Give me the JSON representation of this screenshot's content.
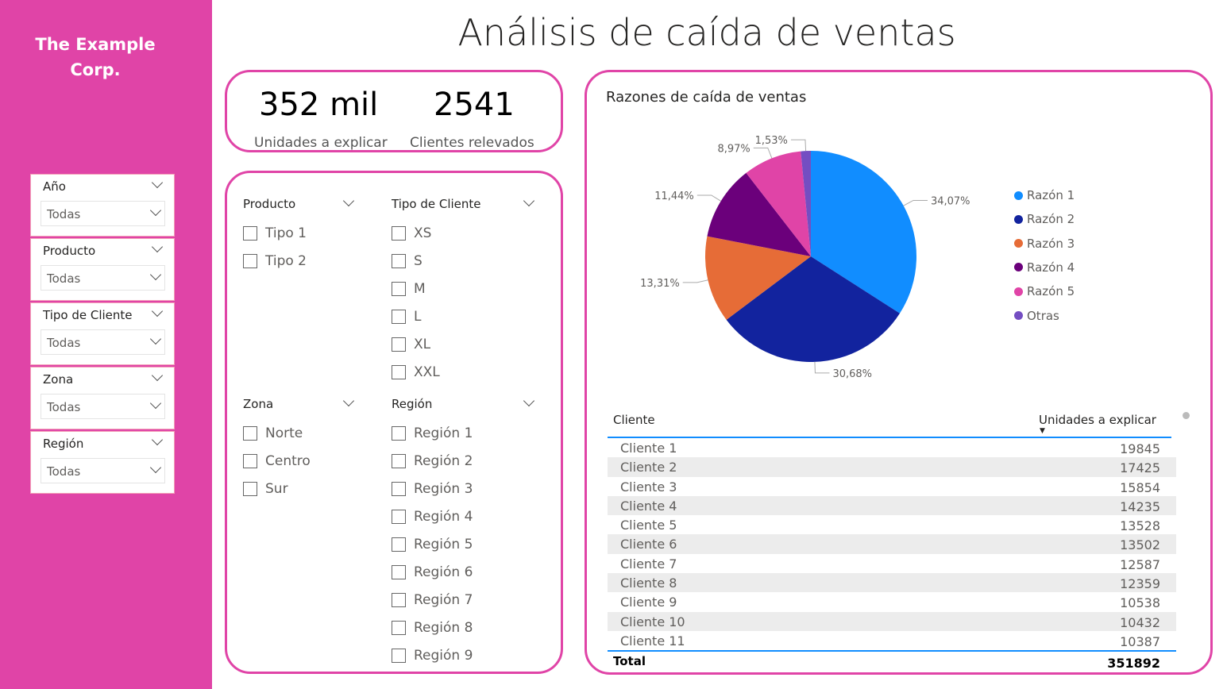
{
  "sidebar": {
    "logo": "The Example Corp.",
    "slicers": [
      {
        "label": "Año",
        "value": "Todas"
      },
      {
        "label": "Producto",
        "value": "Todas"
      },
      {
        "label": "Tipo de Cliente",
        "value": "Todas"
      },
      {
        "label": "Zona",
        "value": "Todas"
      },
      {
        "label": "Región",
        "value": "Todas"
      }
    ]
  },
  "title": "Análisis de caída de ventas",
  "kpis": [
    {
      "value": "352 mil",
      "label": "Unidades a explicar"
    },
    {
      "value": "2541",
      "label": "Clientes relevados"
    }
  ],
  "filters": {
    "producto": {
      "label": "Producto",
      "items": [
        "Tipo 1",
        "Tipo 2"
      ]
    },
    "tipo_cliente": {
      "label": "Tipo de Cliente",
      "items": [
        "XS",
        "S",
        "M",
        "L",
        "XL",
        "XXL"
      ]
    },
    "zona": {
      "label": "Zona",
      "items": [
        "Norte",
        "Centro",
        "Sur"
      ]
    },
    "region": {
      "label": "Región",
      "items": [
        "Región 1",
        "Región 2",
        "Región 3",
        "Región 4",
        "Región 5",
        "Región 6",
        "Región 7",
        "Región 8",
        "Región 9"
      ]
    }
  },
  "chart_data": {
    "type": "pie",
    "title": "Razones de caída de ventas",
    "legend_position": "right",
    "categories": [
      "Razón 1",
      "Razón 2",
      "Razón 3",
      "Razón 4",
      "Razón 5",
      "Otras"
    ],
    "values": [
      34.07,
      30.68,
      13.31,
      11.44,
      8.97,
      1.53
    ],
    "labels": [
      "34,07%",
      "30,68%",
      "13,31%",
      "11,44%",
      "8,97%",
      "1,53%"
    ],
    "colors": [
      "#118DFF",
      "#12239E",
      "#E66C37",
      "#6B007B",
      "#E044A7",
      "#744EC2"
    ]
  },
  "table": {
    "headers": [
      "Cliente",
      "Unidades a explicar"
    ],
    "rows": [
      [
        "Cliente 1",
        "19845"
      ],
      [
        "Cliente 2",
        "17425"
      ],
      [
        "Cliente 3",
        "15854"
      ],
      [
        "Cliente 4",
        "14235"
      ],
      [
        "Cliente 5",
        "13528"
      ],
      [
        "Cliente 6",
        "13502"
      ],
      [
        "Cliente 7",
        "12587"
      ],
      [
        "Cliente 8",
        "12359"
      ],
      [
        "Cliente 9",
        "10538"
      ],
      [
        "Cliente 10",
        "10432"
      ],
      [
        "Cliente 11",
        "10387"
      ]
    ],
    "total_label": "Total",
    "total_value": "351892"
  }
}
